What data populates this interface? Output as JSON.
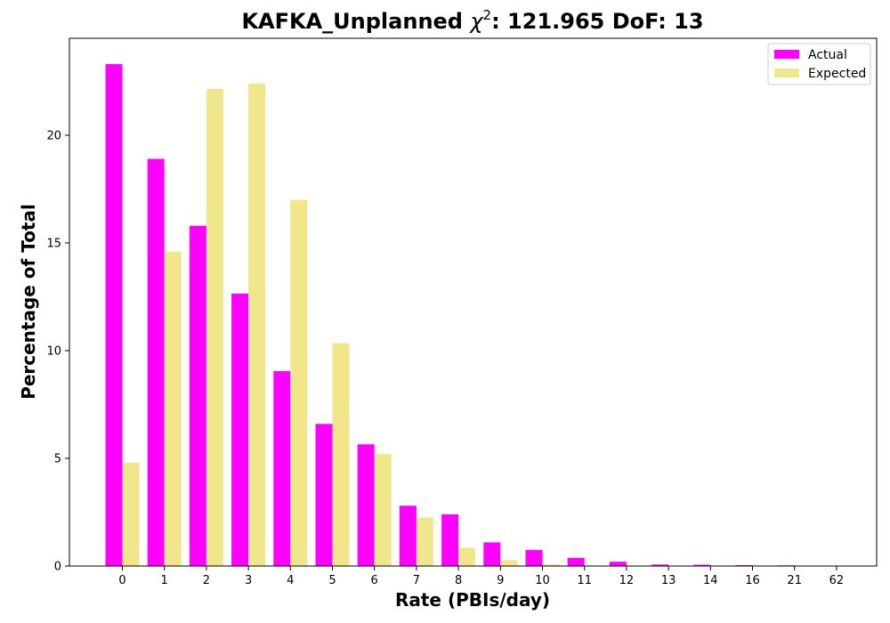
{
  "chart_data": {
    "type": "bar",
    "title_prefix": "KAFKA_Unplanned ",
    "title_symbol": "χ",
    "title_superscript": "2",
    "title_suffix": ": 121.965 DoF: 13",
    "xlabel": "Rate (PBIs/day)",
    "ylabel": "Percentage of Total",
    "categories": [
      "0",
      "1",
      "2",
      "3",
      "4",
      "5",
      "6",
      "7",
      "8",
      "9",
      "10",
      "11",
      "12",
      "13",
      "14",
      "16",
      "21",
      "62"
    ],
    "series": [
      {
        "name": "Actual",
        "color": "#ff00ff",
        "values": [
          23.3,
          18.9,
          15.8,
          12.65,
          9.05,
          6.6,
          5.65,
          2.8,
          2.4,
          1.1,
          0.75,
          0.38,
          0.2,
          0.07,
          0.06,
          0.04,
          0.03,
          0.02
        ]
      },
      {
        "name": "Expected",
        "color": "#f0e68c",
        "values": [
          4.8,
          14.6,
          22.15,
          22.4,
          17.0,
          10.35,
          5.2,
          2.25,
          0.85,
          0.28,
          0.08,
          0.02,
          0.005,
          0.001,
          0.0,
          0.0,
          0.0,
          0.0
        ]
      }
    ],
    "ylim": [
      0,
      24.5
    ],
    "yticks": [
      0,
      5,
      10,
      15,
      20
    ],
    "grid": false,
    "legend_position": "top-right"
  }
}
